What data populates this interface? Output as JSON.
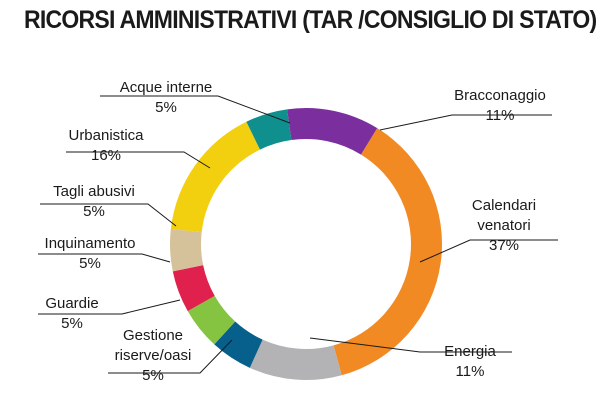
{
  "chart_data": {
    "type": "pie",
    "donut": true,
    "title": "RICORSI AMMINISTRATIVI (TAR /CONSIGLIO DI STATO)",
    "slices": [
      {
        "label": [
          "Bracconaggio"
        ],
        "value_label": "11%",
        "value": 11,
        "color": "#7b2e9e"
      },
      {
        "label": [
          "Calendari",
          "venatori"
        ],
        "value_label": "37%",
        "value": 37,
        "color": "#f28a24"
      },
      {
        "label": [
          "Energia"
        ],
        "value_label": "11%",
        "value": 11,
        "color": "#b3b3b5"
      },
      {
        "label": [
          "Gestione",
          "riserve/oasi"
        ],
        "value_label": "5%",
        "value": 5,
        "color": "#075f8c"
      },
      {
        "label": [
          "Guardie"
        ],
        "value_label": "5%",
        "value": 5,
        "color": "#84c441"
      },
      {
        "label": [
          "Inquinamento"
        ],
        "value_label": "5%",
        "value": 5,
        "color": "#e0214d"
      },
      {
        "label": [
          "Tagli abusivi"
        ],
        "value_label": "5%",
        "value": 5,
        "color": "#d5c29a"
      },
      {
        "label": [
          "Urbanistica"
        ],
        "value_label": "16%",
        "value": 16,
        "color": "#f2cf0f"
      },
      {
        "label": [
          "Acque interne"
        ],
        "value_label": "5%",
        "value": 5,
        "color": "#0f908f"
      }
    ]
  }
}
